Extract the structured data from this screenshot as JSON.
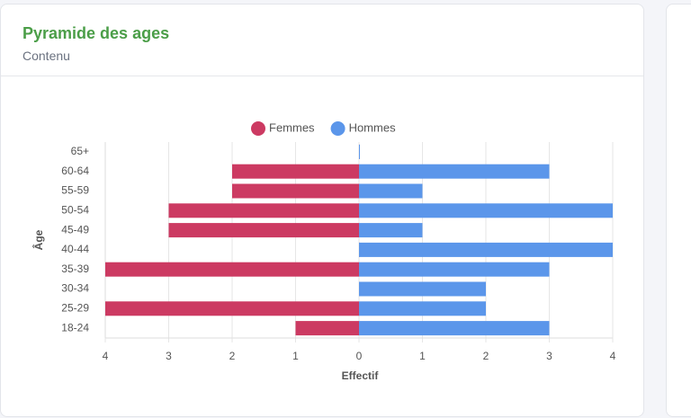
{
  "header": {
    "title": "Pyramide des ages",
    "subtitle": "Contenu"
  },
  "chart_data": {
    "type": "pyramid",
    "categories": [
      "65+",
      "60-64",
      "55-59",
      "50-54",
      "45-49",
      "40-44",
      "35-39",
      "30-34",
      "25-29",
      "18-24"
    ],
    "series": [
      {
        "name": "Femmes",
        "color": "#cc3a62",
        "values": [
          0,
          -2,
          -2,
          -3,
          -3,
          0,
          -4,
          0,
          -4,
          -1
        ]
      },
      {
        "name": "Hommes",
        "color": "#5b96ea",
        "values": [
          0,
          3,
          1,
          4,
          1,
          4,
          3,
          2,
          2,
          3
        ]
      }
    ],
    "xlim": [
      -4,
      4
    ],
    "xticks": [
      {
        "value": -4,
        "label": "4"
      },
      {
        "value": -3,
        "label": "3"
      },
      {
        "value": -2,
        "label": "2"
      },
      {
        "value": -1,
        "label": "1"
      },
      0,
      1,
      2,
      3,
      4
    ],
    "xlabel": "Effectif",
    "ylabel": "Âge",
    "grid": true,
    "legend": "top"
  }
}
